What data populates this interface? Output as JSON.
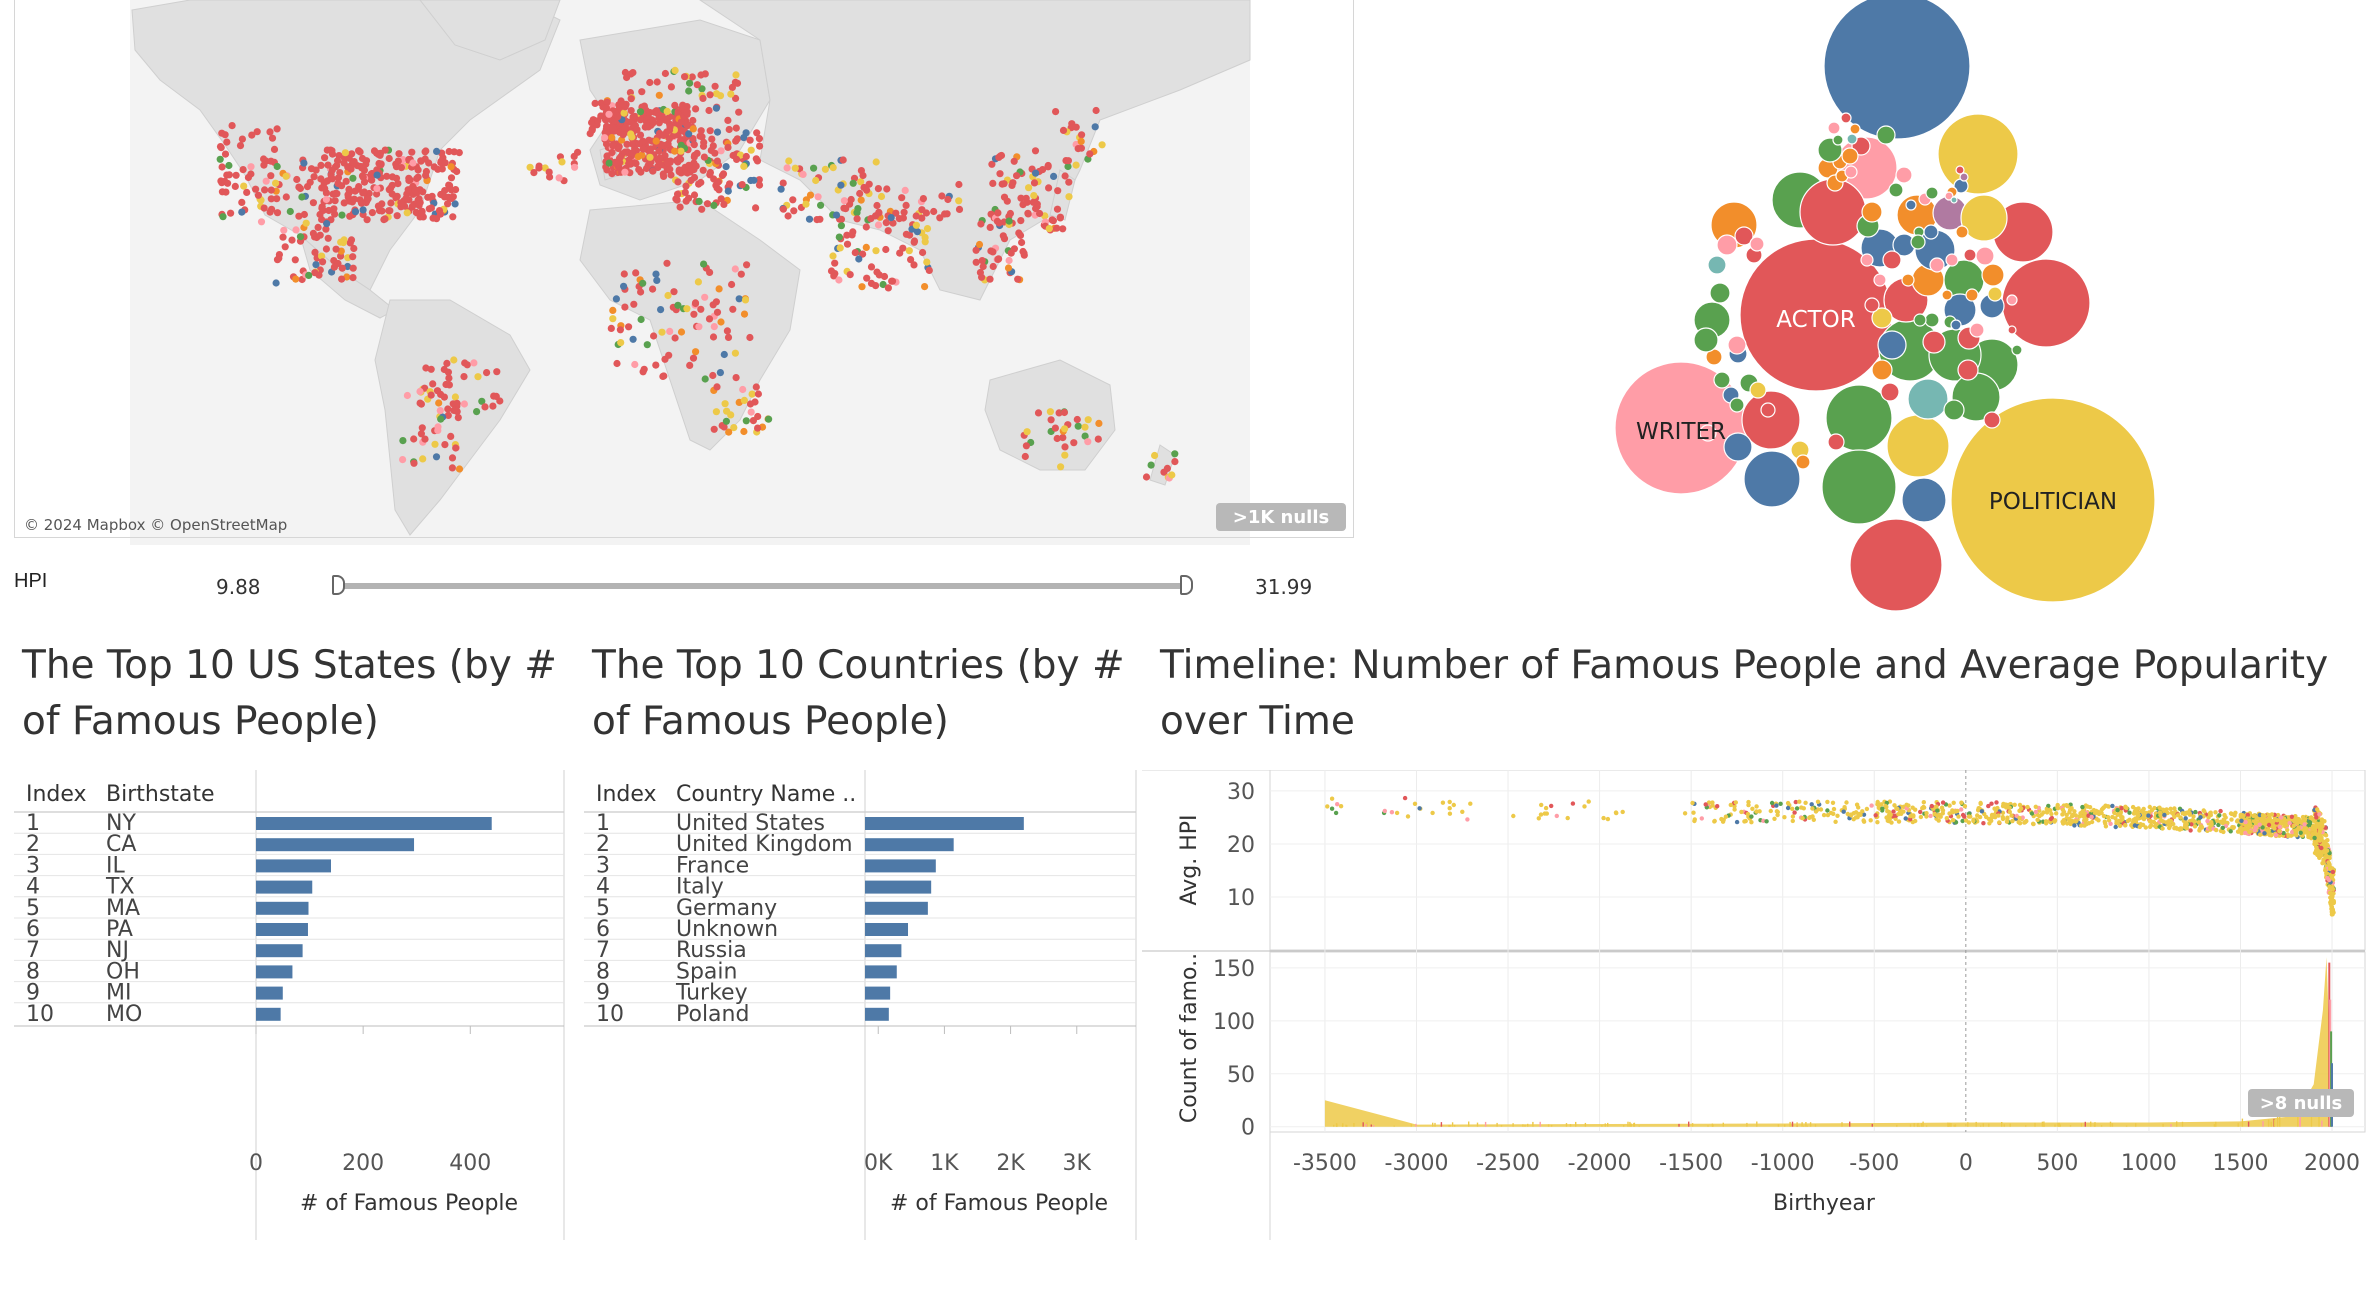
{
  "colors": {
    "bar": "#4e79a7",
    "red": "#e15759",
    "yellow": "#edc948",
    "green": "#59a14f",
    "blue": "#4e79a7",
    "pink": "#ff9da7",
    "orange": "#f28e2b",
    "purple": "#b07aa1",
    "teal": "#76b7b2",
    "land": "#e0e0e0",
    "ocean": "#f3f3f3"
  },
  "map": {
    "attribution": "© 2024 Mapbox © OpenStreetMap",
    "nulls_badge": ">1K nulls"
  },
  "hpi_filter": {
    "label": "HPI",
    "min": "9.88",
    "max": "31.99"
  },
  "bubble_labels": {
    "actor": "ACTOR",
    "writer": "WRITER",
    "politician": "POLITICIAN"
  },
  "states_chart": {
    "title": "The Top 10 US States (by # of Famous People)"
  },
  "countries_chart": {
    "title": "The Top 10 Countries (by # of Famous People)"
  },
  "timeline_chart": {
    "title": "Timeline: Number of Famous People and Average Popularity over Time"
  },
  "chart_data": [
    {
      "type": "bar",
      "title": "The Top 10 US States (by # of Famous People)",
      "columns": [
        "Index",
        "Birthstate"
      ],
      "index": [
        "1",
        "2",
        "3",
        "4",
        "5",
        "6",
        "7",
        "8",
        "9",
        "10"
      ],
      "categories": [
        "NY",
        "CA",
        "IL",
        "TX",
        "MA",
        "PA",
        "NJ",
        "OH",
        "MI",
        "MO"
      ],
      "values": [
        440,
        295,
        140,
        105,
        98,
        97,
        87,
        68,
        50,
        46
      ],
      "xlabel": "# of Famous People",
      "xticks": [
        "0",
        "200",
        "400"
      ],
      "xlim": [
        0,
        560
      ]
    },
    {
      "type": "bar",
      "title": "The Top 10 Countries (by # of Famous People)",
      "columns": [
        "Index",
        "Country Name .."
      ],
      "index": [
        "1",
        "2",
        "3",
        "4",
        "5",
        "6",
        "7",
        "8",
        "9",
        "10"
      ],
      "categories": [
        "United States",
        "United Kingdom",
        "France",
        "Italy",
        "Germany",
        "Unknown",
        "Russia",
        "Spain",
        "Turkey",
        "Poland"
      ],
      "values": [
        2200,
        1140,
        870,
        800,
        750,
        450,
        350,
        280,
        180,
        160
      ],
      "xlabel": "# of Famous People",
      "xticks": [
        "0K",
        "1K",
        "2K",
        "3K"
      ],
      "xlim": [
        -200,
        3200
      ]
    },
    {
      "type": "scatter",
      "title": "Timeline: Number of Famous People and Average Popularity over Time",
      "xlabel": "Birthyear",
      "ylabel": "Avg. HPI",
      "xticks": [
        "-3500",
        "-3000",
        "-2500",
        "-2000",
        "-1500",
        "-1000",
        "-500",
        "0",
        "500",
        "1000",
        "1500",
        "2000"
      ],
      "yticks": [
        "10",
        "20",
        "30"
      ],
      "xlim": [
        -3800,
        2180
      ],
      "ylim": [
        0,
        33
      ],
      "approx_trend": {
        "x": [
          -3500,
          -2000,
          -1000,
          0,
          1000,
          1500,
          1900,
          1960,
          2000
        ],
        "y": [
          27,
          26,
          26,
          26,
          25,
          24,
          23,
          20,
          11
        ]
      }
    },
    {
      "type": "area",
      "title": "",
      "xlabel": "Birthyear",
      "ylabel": "Count of famo..",
      "yticks": [
        "0",
        "50",
        "100",
        "150"
      ],
      "xlim": [
        -3800,
        2180
      ],
      "ylim": [
        -5,
        165
      ],
      "x": [
        -3500,
        -3000,
        -1000,
        0,
        1000,
        1500,
        1800,
        1900,
        1950,
        1970,
        2000
      ],
      "y": [
        25,
        2,
        3,
        4,
        4,
        5,
        10,
        40,
        110,
        160,
        15
      ],
      "nulls_badge": ">8 nulls"
    }
  ]
}
